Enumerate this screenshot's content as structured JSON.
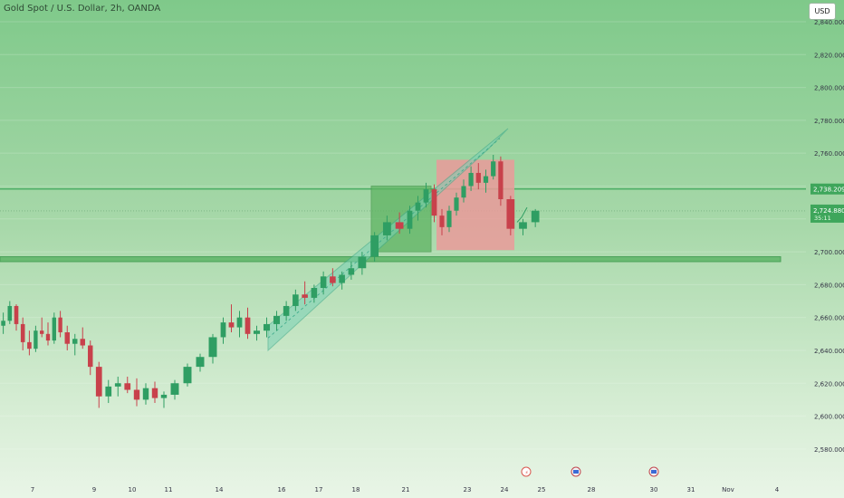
{
  "header": {
    "symbol_title": "Gold Spot / U.S. Dollar, 2h, OANDA",
    "currency": "USD"
  },
  "price_axis": {
    "ticks": [
      "2,840.000",
      "2,820.000",
      "2,800.000",
      "2,780.000",
      "2,760.000",
      "2,740.000",
      "2,720.000",
      "2,700.000",
      "2,680.000",
      "2,660.000",
      "2,640.000",
      "2,620.000",
      "2,600.000",
      "2,580.000"
    ],
    "label_level": "2,738.209",
    "label_current": "2,724.880",
    "countdown": "35:11"
  },
  "time_axis": {
    "ticks": [
      "7",
      "9",
      "10",
      "11",
      "14",
      "16",
      "17",
      "18",
      "21",
      "23",
      "24",
      "25",
      "28",
      "30",
      "31",
      "Nov",
      "4"
    ]
  },
  "colors": {
    "bull": "#2f9e63",
    "bear": "#c8414b",
    "level_line": "#3ea65b",
    "zone": "#63b86c",
    "channel_fill": "#7ad1b6",
    "channel_edge": "#3aa88a",
    "box_green": "#5fb463",
    "box_red": "#ea9a9a",
    "label_green": "#3ea65b"
  },
  "chart_data": {
    "type": "candlestick",
    "y_axis_range": [
      2575,
      2850
    ],
    "horizontal_level": 2738.209,
    "current_price": 2724.88,
    "support_zone": [
      2694,
      2697
    ],
    "channel": {
      "lower": [
        [
          "2024-10-15",
          2640
        ],
        [
          "2024-10-23",
          2763
        ]
      ],
      "upper": [
        [
          "2024-10-15",
          2655
        ],
        [
          "2024-10-24",
          2775
        ]
      ]
    },
    "long_box": {
      "from": "2024-10-18",
      "to": "2024-10-21",
      "low": 2700,
      "high": 2740
    },
    "short_box": {
      "from": "2024-10-21",
      "to": "2024-10-24",
      "low": 2701,
      "high": 2756
    },
    "economic_event_icons": [
      "2024-10-24",
      "2024-10-28",
      "2024-10-30"
    ],
    "ohlc": [
      [
        "2024-10-04",
        2655,
        2663,
        2650,
        2658
      ],
      [
        "2024-10-04",
        2658,
        2670,
        2656,
        2667
      ],
      [
        "2024-10-04",
        2667,
        2668,
        2652,
        2656
      ],
      [
        "2024-10-04",
        2656,
        2660,
        2640,
        2645
      ],
      [
        "2024-10-04",
        2645,
        2652,
        2637,
        2641
      ],
      [
        "2024-10-07",
        2641,
        2655,
        2639,
        2652
      ],
      [
        "2024-10-07",
        2652,
        2660,
        2648,
        2650
      ],
      [
        "2024-10-07",
        2650,
        2657,
        2643,
        2646
      ],
      [
        "2024-10-07",
        2646,
        2663,
        2644,
        2660
      ],
      [
        "2024-10-07",
        2660,
        2664,
        2648,
        2651
      ],
      [
        "2024-10-08",
        2651,
        2655,
        2640,
        2644
      ],
      [
        "2024-10-08",
        2644,
        2650,
        2637,
        2647
      ],
      [
        "2024-10-08",
        2647,
        2654,
        2641,
        2643
      ],
      [
        "2024-10-08",
        2643,
        2646,
        2625,
        2630
      ],
      [
        "2024-10-09",
        2630,
        2633,
        2605,
        2612
      ],
      [
        "2024-10-09",
        2612,
        2622,
        2608,
        2618
      ],
      [
        "2024-10-09",
        2618,
        2624,
        2612,
        2620
      ],
      [
        "2024-10-09",
        2620,
        2624,
        2614,
        2616
      ],
      [
        "2024-10-10",
        2616,
        2623,
        2606,
        2610
      ],
      [
        "2024-10-10",
        2610,
        2620,
        2607,
        2617
      ],
      [
        "2024-10-10",
        2617,
        2621,
        2608,
        2611
      ],
      [
        "2024-10-10",
        2611,
        2615,
        2605,
        2613
      ],
      [
        "2024-10-11",
        2613,
        2622,
        2610,
        2620
      ],
      [
        "2024-10-11",
        2620,
        2632,
        2618,
        2630
      ],
      [
        "2024-10-11",
        2630,
        2638,
        2627,
        2636
      ],
      [
        "2024-10-11",
        2636,
        2650,
        2632,
        2648
      ],
      [
        "2024-10-14",
        2648,
        2660,
        2644,
        2657
      ],
      [
        "2024-10-14",
        2657,
        2668,
        2651,
        2654
      ],
      [
        "2024-10-14",
        2654,
        2664,
        2648,
        2660
      ],
      [
        "2024-10-14",
        2660,
        2666,
        2647,
        2650
      ],
      [
        "2024-10-15",
        2650,
        2655,
        2646,
        2652
      ],
      [
        "2024-10-15",
        2652,
        2660,
        2648,
        2656
      ],
      [
        "2024-10-15",
        2656,
        2664,
        2652,
        2661
      ],
      [
        "2024-10-16",
        2661,
        2670,
        2658,
        2667
      ],
      [
        "2024-10-16",
        2667,
        2677,
        2664,
        2674
      ],
      [
        "2024-10-16",
        2674,
        2682,
        2668,
        2672
      ],
      [
        "2024-10-16",
        2672,
        2680,
        2669,
        2678
      ],
      [
        "2024-10-17",
        2678,
        2688,
        2674,
        2685
      ],
      [
        "2024-10-17",
        2685,
        2690,
        2679,
        2681
      ],
      [
        "2024-10-17",
        2681,
        2688,
        2677,
        2686
      ],
      [
        "2024-10-17",
        2686,
        2694,
        2683,
        2690
      ],
      [
        "2024-10-18",
        2690,
        2700,
        2686,
        2697
      ],
      [
        "2024-10-18",
        2697,
        2712,
        2694,
        2710
      ],
      [
        "2024-10-18",
        2710,
        2722,
        2707,
        2718
      ],
      [
        "2024-10-18",
        2718,
        2724,
        2711,
        2714
      ],
      [
        "2024-10-21",
        2714,
        2728,
        2711,
        2725
      ],
      [
        "2024-10-21",
        2725,
        2734,
        2719,
        2730
      ],
      [
        "2024-10-21",
        2730,
        2742,
        2727,
        2738
      ],
      [
        "2024-10-21",
        2738,
        2741,
        2718,
        2722
      ],
      [
        "2024-10-22",
        2722,
        2726,
        2710,
        2715
      ],
      [
        "2024-10-22",
        2715,
        2728,
        2712,
        2725
      ],
      [
        "2024-10-22",
        2725,
        2736,
        2722,
        2733
      ],
      [
        "2024-10-22",
        2733,
        2744,
        2730,
        2740
      ],
      [
        "2024-10-23",
        2740,
        2752,
        2737,
        2748
      ],
      [
        "2024-10-23",
        2748,
        2754,
        2738,
        2742
      ],
      [
        "2024-10-23",
        2742,
        2750,
        2736,
        2746
      ],
      [
        "2024-10-23",
        2746,
        2759,
        2744,
        2755
      ],
      [
        "2024-10-23",
        2755,
        2758,
        2728,
        2732
      ],
      [
        "2024-10-24",
        2732,
        2734,
        2710,
        2714
      ],
      [
        "2024-10-24",
        2714,
        2720,
        2710,
        2718
      ],
      [
        "2024-10-24",
        2718,
        2726,
        2715,
        2725
      ]
    ]
  }
}
